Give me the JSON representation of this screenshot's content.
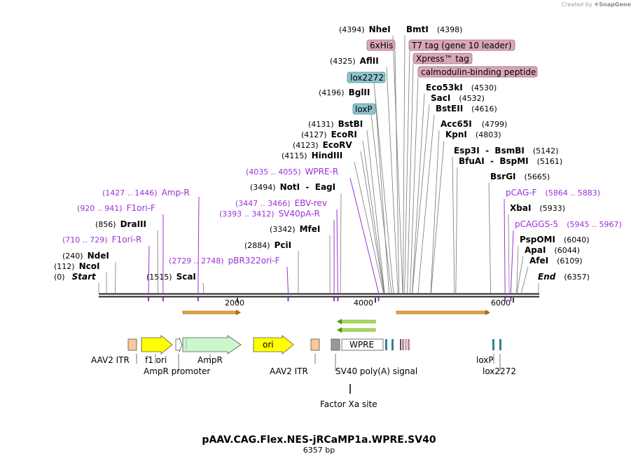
{
  "credit": {
    "prefix": "Created by",
    "brand": "SnapGene"
  },
  "title": "pAAV.CAG.Flex.NES-jRCaMP1a.WPRE.SV40",
  "length_label": "6357 bp",
  "total_bp": 6357,
  "ticks": [
    "2000",
    "4000",
    "6000"
  ],
  "colors": {
    "primer": "#9b30d9",
    "site": "#000000",
    "tag": "#d9a7b6",
    "lox": "#8fc3cf",
    "line": "#777777"
  },
  "sites": [
    {
      "id": "start",
      "pos_label": "(0)",
      "name": "Start",
      "bp": 0,
      "style": "italic"
    },
    {
      "id": "ncoi",
      "pos_label": "(112)",
      "name": "NcoI",
      "bp": 112
    },
    {
      "id": "ndei",
      "pos_label": "(240)",
      "name": "NdeI",
      "bp": 240
    },
    {
      "id": "draiii",
      "pos_label": "(856)",
      "name": "DraIII",
      "bp": 856
    },
    {
      "id": "scai",
      "pos_label": "(1515)",
      "name": "ScaI",
      "bp": 1515
    },
    {
      "id": "pcii",
      "pos_label": "(2884)",
      "name": "PciI",
      "bp": 2884
    },
    {
      "id": "mfei",
      "pos_label": "(3342)",
      "name": "MfeI",
      "bp": 3342
    },
    {
      "id": "noti",
      "pos_label": "(3494)",
      "name": "NotI  -  EagI",
      "bp": 3494
    },
    {
      "id": "hindiii",
      "pos_label": "(4115)",
      "name": "HindIII",
      "bp": 4115
    },
    {
      "id": "ecorv",
      "pos_label": "(4123)",
      "name": "EcoRV",
      "bp": 4123
    },
    {
      "id": "ecori",
      "pos_label": "(4127)",
      "name": "EcoRI",
      "bp": 4127
    },
    {
      "id": "bstbi",
      "pos_label": "(4131)",
      "name": "BstBI",
      "bp": 4131
    },
    {
      "id": "bglii",
      "pos_label": "(4196)",
      "name": "BglII",
      "bp": 4196
    },
    {
      "id": "aflii",
      "pos_label": "(4325)",
      "name": "AflII",
      "bp": 4325
    },
    {
      "id": "nhei",
      "pos_label": "(4394)",
      "name": "NheI",
      "bp": 4394
    },
    {
      "id": "bmti",
      "pos_label": "(4398)",
      "name": "BmtI",
      "bp": 4398
    },
    {
      "id": "eco53ki",
      "pos_label": "(4530)",
      "name": "Eco53kI",
      "bp": 4530
    },
    {
      "id": "saci",
      "pos_label": "(4532)",
      "name": "SacI",
      "bp": 4532
    },
    {
      "id": "bsteii",
      "pos_label": "(4616)",
      "name": "BstEII",
      "bp": 4616
    },
    {
      "id": "acc65i",
      "pos_label": "(4799)",
      "name": "Acc65I",
      "bp": 4799
    },
    {
      "id": "kpni",
      "pos_label": "(4803)",
      "name": "KpnI",
      "bp": 4803
    },
    {
      "id": "esp3i",
      "pos_label": "(5142)",
      "name": "Esp3I  -  BsmBI",
      "bp": 5142
    },
    {
      "id": "bfuai",
      "pos_label": "(5161)",
      "name": "BfuAI  -  BspMI",
      "bp": 5161
    },
    {
      "id": "bsrgi",
      "pos_label": "(5665)",
      "name": "BsrGI",
      "bp": 5665
    },
    {
      "id": "xbai",
      "pos_label": "(5933)",
      "name": "XbaI",
      "bp": 5933
    },
    {
      "id": "pspomi",
      "pos_label": "(6040)",
      "name": "PspOMI",
      "bp": 6040
    },
    {
      "id": "apai",
      "pos_label": "(6044)",
      "name": "ApaI",
      "bp": 6044
    },
    {
      "id": "afei",
      "pos_label": "(6109)",
      "name": "AfeI",
      "bp": 6109
    },
    {
      "id": "end",
      "pos_label": "(6357)",
      "name": "End",
      "bp": 6357,
      "style": "italic"
    }
  ],
  "primers": [
    {
      "id": "f1ori-r",
      "range": "(710 .. 729)",
      "name": "F1ori-R",
      "bp": 719
    },
    {
      "id": "f1ori-f",
      "range": "(920 .. 941)",
      "name": "F1ori-F",
      "bp": 930
    },
    {
      "id": "amp-r",
      "range": "(1427 .. 1446)",
      "name": "Amp-R",
      "bp": 1436
    },
    {
      "id": "pbr322ori-f",
      "range": "(2729 .. 2748)",
      "name": "pBR322ori-F",
      "bp": 2738
    },
    {
      "id": "sv40pa-r",
      "range": "(3393 .. 3412)",
      "name": "SV40pA-R",
      "bp": 3402
    },
    {
      "id": "ebv-rev",
      "range": "(3447 .. 3466)",
      "name": "EBV-rev",
      "bp": 3456
    },
    {
      "id": "wpre-r",
      "range": "(4035 .. 4055)",
      "name": "WPRE-R",
      "bp": 4045
    },
    {
      "id": "pcag-f",
      "range": "(5864 .. 5883)",
      "name": "pCAG-F",
      "bp": 5873
    },
    {
      "id": "pcaggs-5",
      "range": "(5945 .. 5967)",
      "name": "pCAGGS-5",
      "bp": 5956
    }
  ],
  "tags": [
    {
      "id": "6xhis",
      "name": "6xHis",
      "bp": 4340
    },
    {
      "id": "t7tag",
      "name": "T7 tag (gene 10 leader)",
      "bp": 4420
    },
    {
      "id": "xpress",
      "name": "Xpress™ tag",
      "bp": 4460
    },
    {
      "id": "calmodulin",
      "name": "calmodulin-binding peptide",
      "bp": 4500
    },
    {
      "id": "lox2272-top",
      "name": "lox2272",
      "bp": 4260
    },
    {
      "id": "loxp-top",
      "name": "loxP",
      "bp": 4230
    }
  ],
  "features": [
    {
      "id": "aav2itr-left",
      "label": "AAV2 ITR"
    },
    {
      "id": "f1ori",
      "label": "f1 ori"
    },
    {
      "id": "amprpromoter",
      "label": "AmpR promoter"
    },
    {
      "id": "ampr",
      "label": "AmpR"
    },
    {
      "id": "ori",
      "label": "ori",
      "inner": "ori"
    },
    {
      "id": "aav2itr-right",
      "label": "AAV2 ITR"
    },
    {
      "id": "sv40polya",
      "label": "SV40 poly(A) signal"
    },
    {
      "id": "wpre",
      "label": "",
      "inner": "WPRE"
    },
    {
      "id": "loxp",
      "label": "loxP"
    },
    {
      "id": "lox2272",
      "label": "lox2272"
    },
    {
      "id": "factorxa",
      "label": "Factor Xa site"
    }
  ]
}
